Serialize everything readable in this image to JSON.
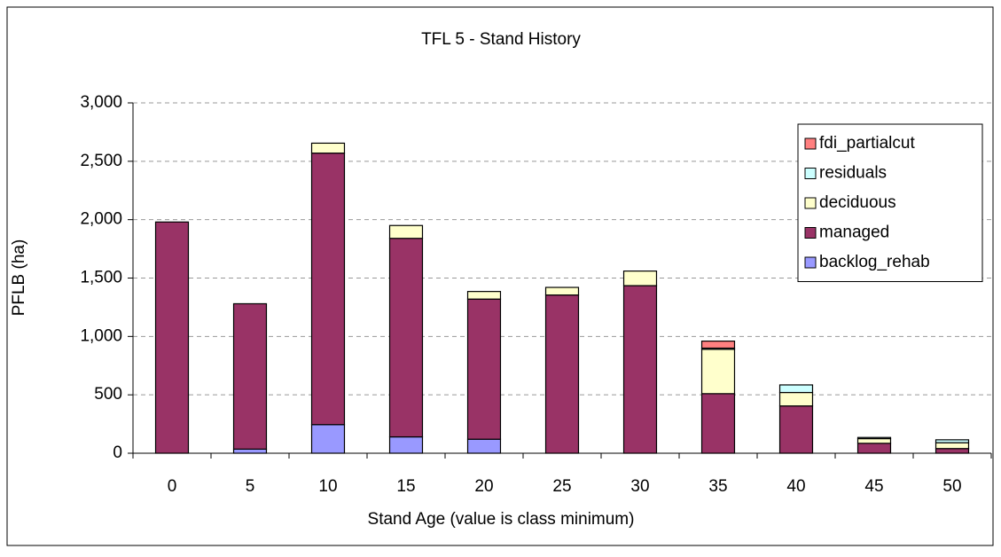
{
  "chart_data": {
    "type": "bar",
    "stacked": true,
    "title": "TFL 5 - Stand History",
    "x_label": "Stand Age (value is class minimum)",
    "y_label": "PFLB (ha)",
    "categories": [
      "0",
      "5",
      "10",
      "15",
      "20",
      "25",
      "30",
      "35",
      "40",
      "45",
      "50"
    ],
    "series": [
      {
        "name": "backlog_rehab",
        "color": "#9999ff",
        "values": [
          0,
          35,
          245,
          140,
          120,
          0,
          0,
          0,
          0,
          0,
          0
        ]
      },
      {
        "name": "managed",
        "color": "#993366",
        "values": [
          1980,
          1245,
          2325,
          1700,
          1200,
          1355,
          1435,
          510,
          405,
          85,
          40
        ]
      },
      {
        "name": "deciduous",
        "color": "#ffffcc",
        "values": [
          0,
          0,
          85,
          110,
          65,
          65,
          125,
          380,
          115,
          40,
          50
        ]
      },
      {
        "name": "residuals",
        "color": "#ccffff",
        "values": [
          0,
          0,
          0,
          0,
          0,
          0,
          0,
          10,
          65,
          10,
          25
        ]
      },
      {
        "name": "fdi_partialcut",
        "color": "#ff8080",
        "values": [
          0,
          0,
          0,
          0,
          0,
          0,
          0,
          60,
          0,
          0,
          0
        ]
      }
    ],
    "ylim": [
      0,
      3000
    ],
    "yticks": [
      0,
      {
        "value": 500,
        "label": "500"
      },
      {
        "value": 1000,
        "label": "1,000"
      },
      {
        "value": 1500,
        "label": "1,500"
      },
      {
        "value": 2000,
        "label": "2,000"
      },
      {
        "value": 2500,
        "label": "2,500"
      },
      {
        "value": 3000,
        "label": "3,000"
      }
    ],
    "grid": true,
    "legend": "upper right"
  }
}
